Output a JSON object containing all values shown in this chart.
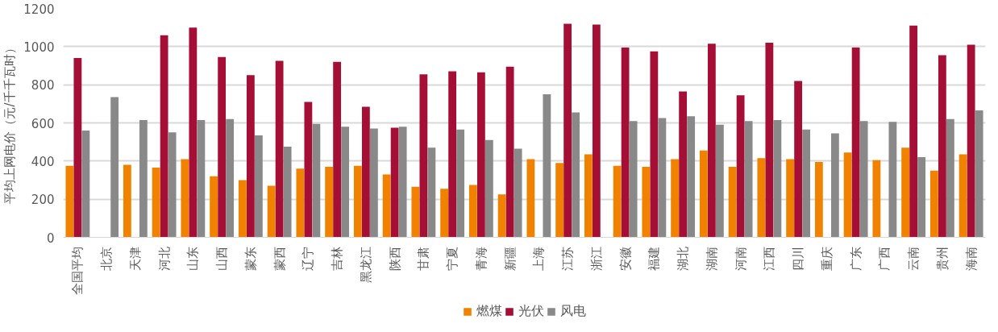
{
  "chart_data": {
    "type": "bar",
    "ylabel": "平均上网电价（元/千千瓦时）",
    "categories": [
      "全国平均",
      "北京",
      "天津",
      "河北",
      "山东",
      "山西",
      "蒙东",
      "蒙西",
      "辽宁",
      "吉林",
      "黑龙江",
      "陕西",
      "甘肃",
      "宁夏",
      "青海",
      "新疆",
      "上海",
      "江苏",
      "浙江",
      "安徽",
      "福建",
      "湖北",
      "湖南",
      "河南",
      "江西",
      "四川",
      "重庆",
      "广东",
      "广西",
      "云南",
      "贵州",
      "海南"
    ],
    "series": [
      {
        "name": "燃煤",
        "color": "#f08200",
        "values": [
          375,
          null,
          380,
          365,
          410,
          320,
          300,
          270,
          360,
          370,
          375,
          330,
          265,
          255,
          275,
          225,
          410,
          390,
          435,
          375,
          370,
          410,
          455,
          370,
          415,
          410,
          395,
          445,
          405,
          470,
          350,
          435
        ]
      },
      {
        "name": "光伏",
        "color": "#a50f35",
        "values": [
          940,
          null,
          null,
          1060,
          1100,
          945,
          850,
          925,
          710,
          920,
          685,
          575,
          855,
          870,
          865,
          895,
          null,
          1120,
          1115,
          995,
          975,
          765,
          1015,
          745,
          1020,
          820,
          null,
          995,
          null,
          1110,
          955,
          1010
        ]
      },
      {
        "name": "风电",
        "color": "#898989",
        "values": [
          560,
          735,
          615,
          550,
          615,
          620,
          535,
          475,
          595,
          580,
          570,
          580,
          470,
          565,
          510,
          465,
          750,
          655,
          null,
          610,
          625,
          635,
          590,
          610,
          615,
          565,
          545,
          610,
          605,
          420,
          620,
          665
        ]
      }
    ],
    "ylim": [
      0,
      1200
    ],
    "yticks": [
      0,
      200,
      400,
      600,
      800,
      1000,
      1200
    ],
    "grid": "y",
    "legend": "bottom"
  }
}
